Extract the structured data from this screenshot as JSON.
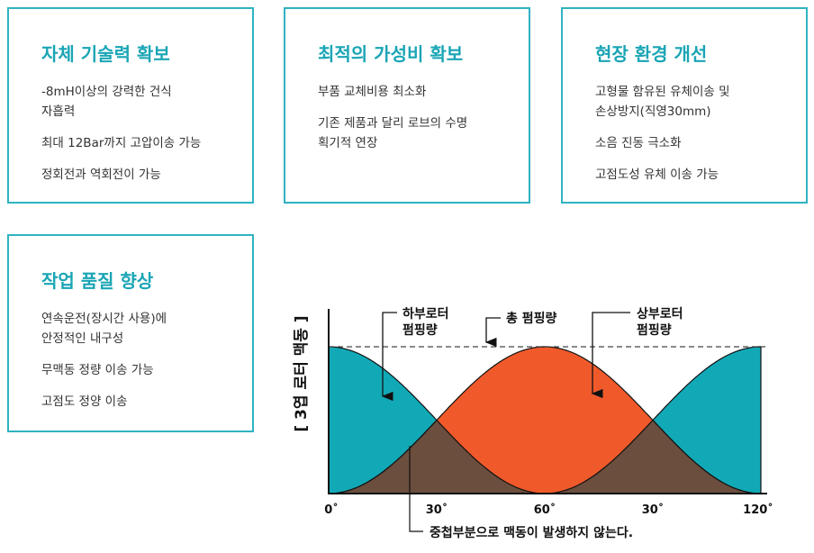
{
  "cards": [
    {
      "title": "자체 기술력 확보",
      "items": [
        "-8mH이상의 강력한 건식\n자흡력",
        "최대 12Bar까지 고압이송 가능",
        "정회전과 역회전이 가능"
      ]
    },
    {
      "title": "최적의 가성비 확보",
      "items": [
        "부품 교체비용 최소화",
        "기존 제품과 달리 로브의 수명\n획기적 연장"
      ]
    },
    {
      "title": "현장 환경 개선",
      "items": [
        "고형물 함유된 유체이송 및\n손상방지(직영30mm)",
        "소음 진동 극소화",
        "고점도성 유체 이송 가능"
      ]
    },
    {
      "title": "작업 품질 향상",
      "items": [
        "연속운전(장시간 사용)에\n안정적인 내구성",
        "무맥동 정량 이송 가능",
        "고점도 정양 이송"
      ]
    }
  ],
  "diagram": {
    "y_label": "[ 3엽 로터 맥동 ]",
    "lower_rotor": [
      "하부로터",
      "펌핑량"
    ],
    "total": "총 펌핑량",
    "upper_rotor": [
      "상부로터",
      "펌핑량"
    ],
    "x_labels": [
      "0˚",
      "30˚",
      "60˚",
      "30˚",
      "120˚"
    ],
    "note": "중첩부분으로 맥동이 발생하지 않는다."
  }
}
